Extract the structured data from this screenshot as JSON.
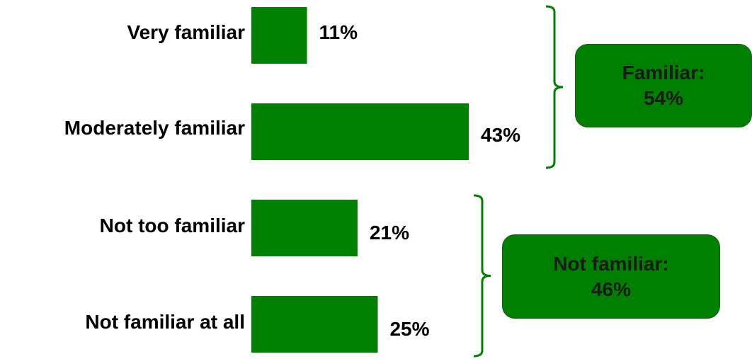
{
  "chart_data": {
    "type": "bar",
    "orientation": "horizontal",
    "categories": [
      "Very familiar",
      "Moderately familiar",
      "Not too familiar",
      "Not familiar at all"
    ],
    "values": [
      11,
      43,
      21,
      25
    ],
    "value_labels": [
      "11%",
      "43%",
      "21%",
      "25%"
    ],
    "unit": "%",
    "xlim": [
      0,
      43
    ],
    "grid": false,
    "axes_visible": false,
    "bar_color": "#008000",
    "groups": [
      {
        "label": "Familiar:",
        "value_label": "54%",
        "value": 54,
        "members": [
          "Very familiar",
          "Moderately familiar"
        ]
      },
      {
        "label": "Not familiar:",
        "value_label": "46%",
        "value": 46,
        "members": [
          "Not too familiar",
          "Not familiar at all"
        ]
      }
    ]
  },
  "colors": {
    "bar": "#008000",
    "bracket": "#008000",
    "box_fill": "#008000",
    "box_text": "#1a1a1a",
    "text": "#000000"
  }
}
